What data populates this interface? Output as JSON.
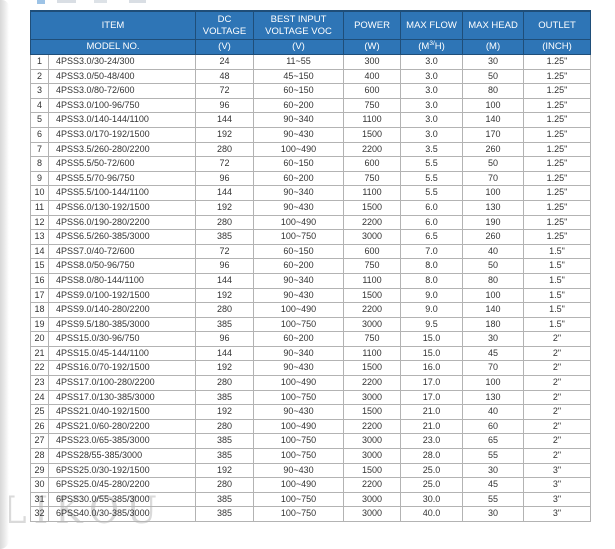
{
  "page": {
    "watermark": "LIKOU"
  },
  "table": {
    "header": {
      "item": "ITEM",
      "model_no": "MODEL NO.",
      "dc_voltage": "DC VOLTAGE",
      "best_input": "BEST INPUT VOLTAGE VOC",
      "power": "POWER",
      "max_flow": "MAX FLOW",
      "max_head": "MAX HEAD",
      "outlet": "OUTLET",
      "units": {
        "dc_voltage": "(V)",
        "best_input": "(V)",
        "power": "(W)",
        "max_flow_pre": "(M",
        "max_flow_sup": "3/",
        "max_flow_post": "H)",
        "max_head": "(M)",
        "outlet": "(INCH)"
      }
    },
    "rows": [
      [
        "1",
        "4PSS3.0/30-24/300",
        "24",
        "11~55",
        "300",
        "3.0",
        "30",
        "1.25\""
      ],
      [
        "2",
        "4PSS3.0/50-48/400",
        "48",
        "45~150",
        "400",
        "3.0",
        "50",
        "1.25\""
      ],
      [
        "3",
        "4PSS3.0/80-72/600",
        "72",
        "60~150",
        "600",
        "3.0",
        "80",
        "1.25\""
      ],
      [
        "4",
        "4PSS3.0/100-96/750",
        "96",
        "60~200",
        "750",
        "3.0",
        "100",
        "1.25\""
      ],
      [
        "5",
        "4PSS3.0/140-144/1100",
        "144",
        "90~340",
        "1100",
        "3.0",
        "140",
        "1.25\""
      ],
      [
        "6",
        "4PSS3.0/170-192/1500",
        "192",
        "90~430",
        "1500",
        "3.0",
        "170",
        "1.25\""
      ],
      [
        "7",
        "4PSS3.5/260-280/2200",
        "280",
        "100~490",
        "2200",
        "3.5",
        "260",
        "1.25\""
      ],
      [
        "8",
        "4PSS5.5/50-72/600",
        "72",
        "60~150",
        "600",
        "5.5",
        "50",
        "1.25\""
      ],
      [
        "9",
        "4PSS5.5/70-96/750",
        "96",
        "60~200",
        "750",
        "5.5",
        "70",
        "1.25\""
      ],
      [
        "10",
        "4PSS5.5/100-144/1100",
        "144",
        "90~340",
        "1100",
        "5.5",
        "100",
        "1.25\""
      ],
      [
        "11",
        "4PSS6.0/130-192/1500",
        "192",
        "90~430",
        "1500",
        "6.0",
        "130",
        "1.25\""
      ],
      [
        "12",
        "4PSS6.0/190-280/2200",
        "280",
        "100~490",
        "2200",
        "6.0",
        "190",
        "1.25\""
      ],
      [
        "13",
        "4PSS6.5/260-385/3000",
        "385",
        "100~750",
        "3000",
        "6.5",
        "260",
        "1.25\""
      ],
      [
        "14",
        "4PSS7.0/40-72/600",
        "72",
        "60~150",
        "600",
        "7.0",
        "40",
        "1.5\""
      ],
      [
        "15",
        "4PSS8.0/50-96/750",
        "96",
        "60~200",
        "750",
        "8.0",
        "50",
        "1.5\""
      ],
      [
        "16",
        "4PSS8.0/80-144/1100",
        "144",
        "90~340",
        "1100",
        "8.0",
        "80",
        "1.5\""
      ],
      [
        "17",
        "4PSS9.0/100-192/1500",
        "192",
        "90~430",
        "1500",
        "9.0",
        "100",
        "1.5\""
      ],
      [
        "18",
        "4PSS9.0/140-280/2200",
        "280",
        "100~490",
        "2200",
        "9.0",
        "140",
        "1.5\""
      ],
      [
        "19",
        "4PSS9.5/180-385/3000",
        "385",
        "100~750",
        "3000",
        "9.5",
        "180",
        "1.5\""
      ],
      [
        "20",
        "4PSS15.0/30-96/750",
        "96",
        "60~200",
        "750",
        "15.0",
        "30",
        "2\""
      ],
      [
        "21",
        "4PSS15.0/45-144/1100",
        "144",
        "90~340",
        "1100",
        "15.0",
        "45",
        "2\""
      ],
      [
        "22",
        "4PSS16.0/70-192/1500",
        "192",
        "90~430",
        "1500",
        "16.0",
        "70",
        "2\""
      ],
      [
        "23",
        "4PSS17.0/100-280/2200",
        "280",
        "100~490",
        "2200",
        "17.0",
        "100",
        "2\""
      ],
      [
        "24",
        "4PSS17.0/130-385/3000",
        "385",
        "100~750",
        "3000",
        "17.0",
        "130",
        "2\""
      ],
      [
        "25",
        "4PSS21.0/40-192/1500",
        "192",
        "90~430",
        "1500",
        "21.0",
        "40",
        "2\""
      ],
      [
        "26",
        "4PSS21.0/60-280/2200",
        "280",
        "100~490",
        "2200",
        "21.0",
        "60",
        "2\""
      ],
      [
        "27",
        "4PSS23.0/65-385/3000",
        "385",
        "100~750",
        "3000",
        "23.0",
        "65",
        "2\""
      ],
      [
        "28",
        "4PSS28/55-385/3000",
        "385",
        "100~750",
        "3000",
        "28.0",
        "55",
        "2\""
      ],
      [
        "29",
        "6PSS25.0/30-192/1500",
        "192",
        "90~430",
        "1500",
        "25.0",
        "30",
        "3\""
      ],
      [
        "30",
        "6PSS25.0/45-280/2200",
        "280",
        "100~490",
        "2200",
        "25.0",
        "45",
        "3\""
      ],
      [
        "31",
        "6PSS30.0/55-385/3000",
        "385",
        "100~750",
        "3000",
        "30.0",
        "55",
        "3\""
      ],
      [
        "32",
        "6PSS40.0/30-385/3000",
        "385",
        "100~750",
        "3000",
        "40.0",
        "30",
        "3\""
      ]
    ],
    "colors": {
      "header_bg": "#2e75b6",
      "header_border": "#1f4e79",
      "body_border": "#b3b3b3",
      "body_text": "#333333"
    }
  }
}
